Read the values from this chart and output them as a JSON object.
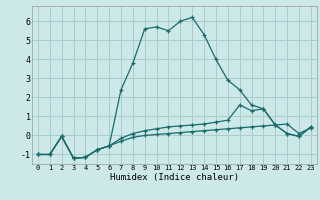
{
  "xlabel": "Humidex (Indice chaleur)",
  "bg_color": "#cce8e8",
  "grid_color": "#aacccc",
  "line_color": "#1a6b6b",
  "xlim": [
    -0.5,
    23.5
  ],
  "ylim": [
    -1.5,
    6.8
  ],
  "yticks": [
    -1,
    0,
    1,
    2,
    3,
    4,
    5,
    6
  ],
  "xticks": [
    0,
    1,
    2,
    3,
    4,
    5,
    6,
    7,
    8,
    9,
    10,
    11,
    12,
    13,
    14,
    15,
    16,
    17,
    18,
    19,
    20,
    21,
    22,
    23
  ],
  "line1_x": [
    0,
    1,
    2,
    3,
    4,
    5,
    6,
    7,
    8,
    9,
    10,
    11,
    12,
    13,
    14,
    15,
    16,
    17,
    18,
    19,
    20,
    21,
    22,
    23
  ],
  "line1_y": [
    -1.0,
    -1.0,
    -0.05,
    -1.2,
    -1.15,
    -0.75,
    -0.55,
    -0.3,
    -0.1,
    0.0,
    0.05,
    0.1,
    0.15,
    0.2,
    0.25,
    0.3,
    0.35,
    0.4,
    0.45,
    0.5,
    0.55,
    0.6,
    0.1,
    0.4
  ],
  "line2_x": [
    0,
    1,
    2,
    3,
    4,
    5,
    6,
    7,
    8,
    9,
    10,
    11,
    12,
    13,
    14,
    15,
    16,
    17,
    18,
    19,
    20,
    21,
    22,
    23
  ],
  "line2_y": [
    -1.0,
    -1.0,
    -0.05,
    -1.2,
    -1.15,
    -0.75,
    -0.55,
    -0.15,
    0.1,
    0.25,
    0.35,
    0.45,
    0.5,
    0.55,
    0.6,
    0.7,
    0.8,
    1.6,
    1.3,
    1.4,
    0.55,
    0.1,
    -0.05,
    0.45
  ],
  "line3_x": [
    0,
    1,
    2,
    3,
    4,
    5,
    6,
    7,
    8,
    9,
    10,
    11,
    12,
    13,
    14,
    15,
    16,
    17,
    18,
    19,
    20,
    21,
    22,
    23
  ],
  "line3_y": [
    -1.0,
    -1.0,
    -0.05,
    -1.2,
    -1.15,
    -0.75,
    -0.55,
    2.4,
    3.8,
    5.6,
    5.7,
    5.5,
    6.0,
    6.2,
    5.3,
    4.0,
    2.9,
    2.4,
    1.6,
    1.4,
    0.55,
    0.1,
    -0.05,
    0.45
  ]
}
